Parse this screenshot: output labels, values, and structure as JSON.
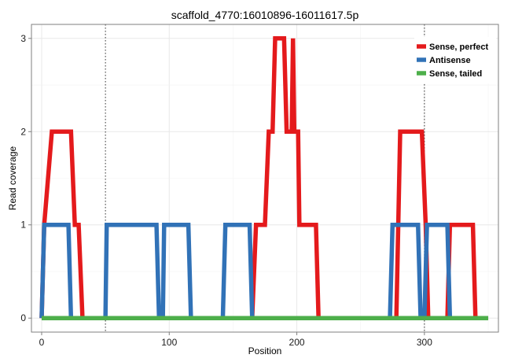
{
  "chart_data": {
    "type": "line",
    "title": "scaffold_4770:16010896-16011617.5p",
    "xlabel": "Position",
    "ylabel": "Read coverage",
    "xlim": [
      -8,
      358
    ],
    "ylim": [
      -0.15,
      3.15
    ],
    "xticks": [
      0,
      100,
      200,
      300
    ],
    "yticks": [
      0,
      1,
      2,
      3
    ],
    "grid": true,
    "legend_position": "top-right",
    "vlines": [
      50,
      300
    ],
    "series": [
      {
        "name": "Sense, perfect",
        "color": "#e41a1c",
        "x": [
          0,
          2,
          8,
          23,
          26,
          29,
          32,
          165,
          168,
          175,
          178,
          181,
          183,
          190,
          192,
          194,
          196,
          197,
          198,
          201,
          202,
          215,
          217,
          278,
          281,
          298,
          301,
          303,
          318,
          320,
          338,
          340,
          350
        ],
        "y": [
          0,
          1,
          2,
          2,
          1,
          1,
          0,
          0,
          1,
          1,
          2,
          2,
          3,
          3,
          2,
          2,
          2,
          3,
          2,
          2,
          1,
          1,
          0,
          0,
          2,
          2,
          1,
          0,
          0,
          1,
          1,
          0,
          0
        ]
      },
      {
        "name": "Antisense",
        "color": "#3172b7",
        "x": [
          0,
          2,
          21,
          23,
          50,
          51,
          90,
          92,
          95,
          96,
          115,
          117,
          142,
          144,
          163,
          165,
          273,
          275,
          295,
          297,
          300,
          302,
          318,
          320,
          350
        ],
        "y": [
          0,
          1,
          1,
          0,
          0,
          1,
          1,
          0,
          0,
          1,
          1,
          0,
          0,
          1,
          1,
          0,
          0,
          1,
          1,
          0,
          0,
          1,
          1,
          0,
          0
        ]
      },
      {
        "name": "Sense, tailed",
        "color": "#4daf4a",
        "x": [
          0,
          350
        ],
        "y": [
          0,
          0
        ]
      }
    ]
  }
}
